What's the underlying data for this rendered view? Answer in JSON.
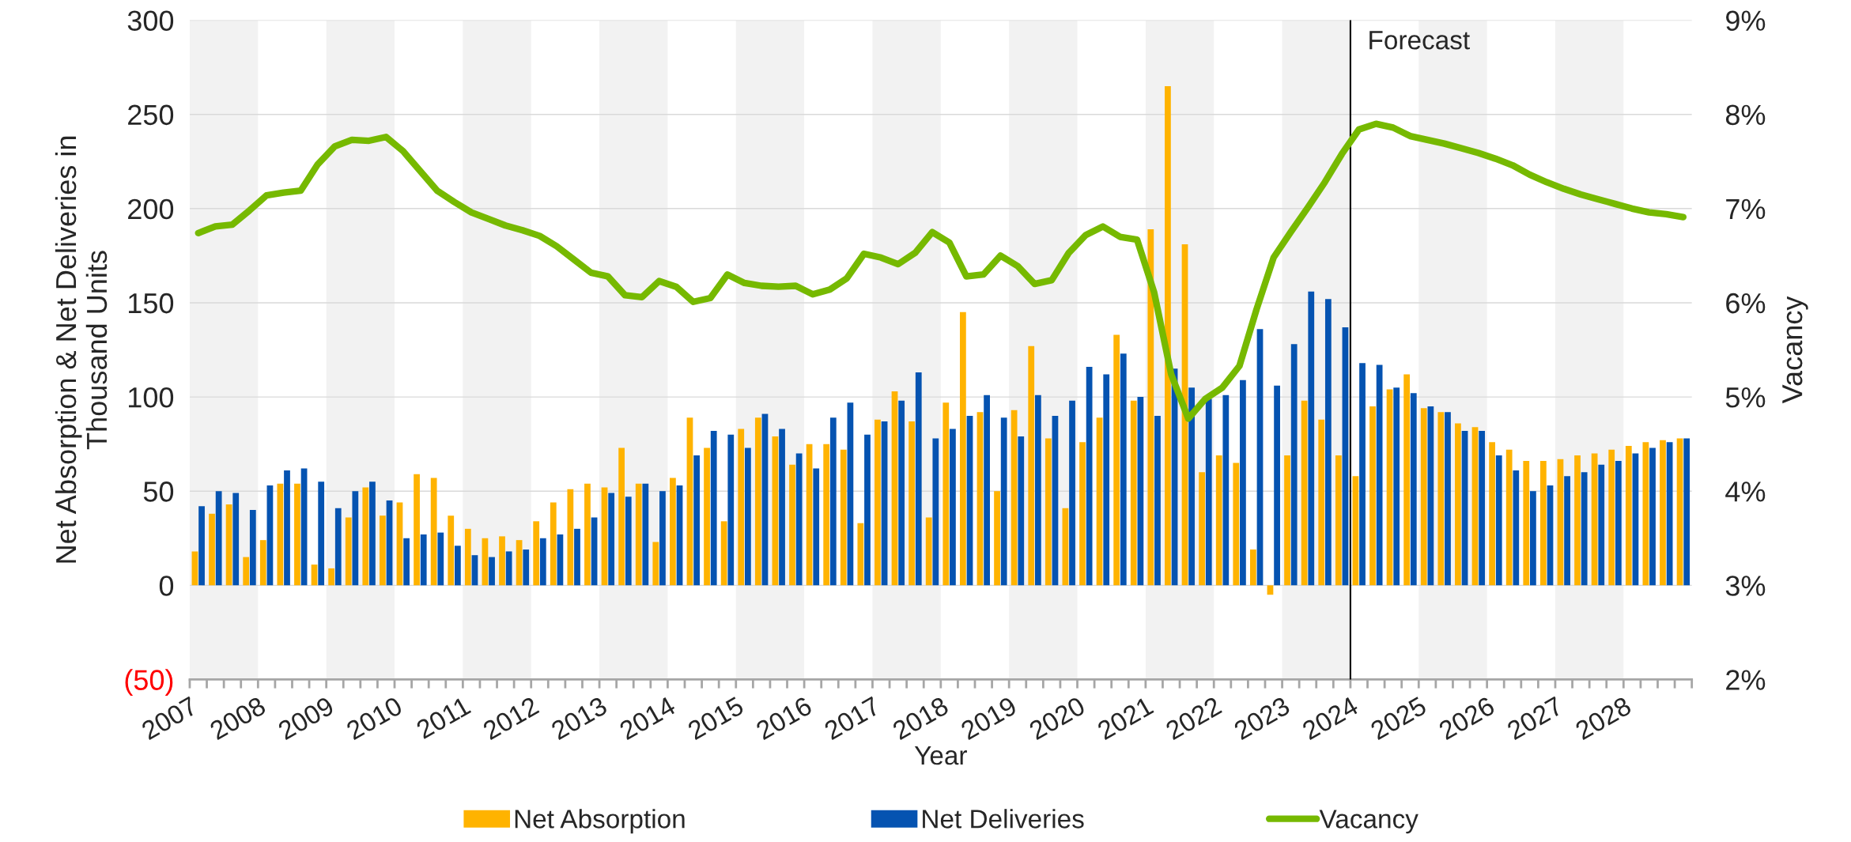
{
  "chart_data": {
    "type": "bar",
    "xlabel": "Year",
    "ylabel": "Net Absorption & Net Deliveries in\nThousand Units",
    "y2label": "Vacancy",
    "x": [
      2007.125,
      2007.375,
      2007.625,
      2007.875,
      2008.125,
      2008.375,
      2008.625,
      2008.875,
      2009.125,
      2009.375,
      2009.625,
      2009.875,
      2010.125,
      2010.375,
      2010.625,
      2010.875,
      2011.125,
      2011.375,
      2011.625,
      2011.875,
      2012.125,
      2012.375,
      2012.625,
      2012.875,
      2013.125,
      2013.375,
      2013.625,
      2013.875,
      2014.125,
      2014.375,
      2014.625,
      2014.875,
      2015.125,
      2015.375,
      2015.625,
      2015.875,
      2016.125,
      2016.375,
      2016.625,
      2016.875,
      2017.125,
      2017.375,
      2017.625,
      2017.875,
      2018.125,
      2018.375,
      2018.625,
      2018.875,
      2019.125,
      2019.375,
      2019.625,
      2019.875,
      2020.125,
      2020.375,
      2020.625,
      2020.875,
      2021.125,
      2021.375,
      2021.625,
      2021.875,
      2022.125,
      2022.375,
      2022.625,
      2022.875,
      2023.125,
      2023.375,
      2023.625,
      2023.875,
      2024.125,
      2024.375,
      2024.625,
      2024.875,
      2025.125,
      2025.375,
      2025.625,
      2025.875,
      2026.125,
      2026.375,
      2026.625,
      2026.875,
      2027.125,
      2027.375,
      2027.625,
      2027.875,
      2028.125,
      2028.375,
      2028.625,
      2028.875
    ],
    "series": [
      {
        "name": "Net Absorption",
        "color": "#ffb300",
        "values": [
          18,
          38,
          43,
          15,
          24,
          54,
          54,
          11,
          9,
          36,
          52,
          37,
          44,
          59,
          57,
          37,
          30,
          25,
          26,
          24,
          34,
          44,
          51,
          54,
          52,
          73,
          54,
          23,
          57,
          89,
          73,
          34,
          83,
          89,
          79,
          64,
          75,
          75,
          72,
          33,
          88,
          103,
          87,
          36,
          97,
          145,
          92,
          50,
          93,
          127,
          78,
          41,
          76,
          89,
          133,
          98,
          189,
          265,
          181,
          60,
          69,
          65,
          19,
          -5,
          69,
          98,
          88,
          69,
          58,
          95,
          104,
          112,
          94,
          92,
          86,
          84,
          76,
          72,
          66,
          66,
          67,
          69,
          70,
          72,
          74,
          76,
          77,
          78
        ]
      },
      {
        "name": "Net Deliveries",
        "color": "#0553b1",
        "values": [
          42,
          50,
          49,
          40,
          53,
          61,
          62,
          55,
          41,
          50,
          55,
          45,
          25,
          27,
          28,
          21,
          16,
          15,
          18,
          19,
          25,
          27,
          30,
          36,
          49,
          47,
          54,
          50,
          53,
          69,
          82,
          80,
          73,
          91,
          83,
          70,
          62,
          89,
          97,
          80,
          87,
          98,
          113,
          78,
          83,
          90,
          101,
          89,
          79,
          101,
          90,
          98,
          116,
          112,
          123,
          100,
          90,
          115,
          105,
          99,
          101,
          109,
          136,
          106,
          128,
          156,
          152,
          137,
          118,
          117,
          105,
          102,
          95,
          92,
          82,
          82,
          69,
          61,
          50,
          53,
          58,
          60,
          64,
          66,
          70,
          73,
          76,
          78
        ]
      },
      {
        "name": "Vacancy",
        "color": "#76b900",
        "type": "line",
        "axis": "y2",
        "values": [
          6.74,
          6.81,
          6.83,
          6.98,
          7.14,
          7.17,
          7.19,
          7.47,
          7.66,
          7.73,
          7.72,
          7.76,
          7.61,
          7.4,
          7.19,
          7.07,
          6.96,
          6.89,
          6.82,
          6.77,
          6.71,
          6.6,
          6.46,
          6.32,
          6.28,
          6.08,
          6.06,
          6.23,
          6.17,
          6.01,
          6.05,
          6.3,
          6.21,
          6.18,
          6.17,
          6.18,
          6.09,
          6.14,
          6.26,
          6.52,
          6.48,
          6.41,
          6.53,
          6.75,
          6.64,
          6.28,
          6.3,
          6.5,
          6.39,
          6.2,
          6.24,
          6.53,
          6.72,
          6.81,
          6.7,
          6.67,
          6.11,
          5.24,
          4.77,
          4.98,
          5.1,
          5.33,
          5.93,
          6.48,
          6.75,
          7.01,
          7.28,
          7.58,
          7.84,
          7.9,
          7.86,
          7.77,
          7.73,
          7.69,
          7.64,
          7.59,
          7.53,
          7.46,
          7.36,
          7.28,
          7.21,
          7.15,
          7.1,
          7.05,
          7.0,
          6.96,
          6.94,
          6.91
        ]
      }
    ],
    "xlim": [
      2007,
      2029
    ],
    "xticks": [
      2007,
      {
        "value": 2007.25,
        "label": null
      },
      {
        "value": 2007.5,
        "label": null
      },
      {
        "value": 2007.75,
        "label": null
      },
      2008,
      {
        "value": 2008.25,
        "label": null
      },
      {
        "value": 2008.5,
        "label": null
      },
      {
        "value": 2008.75,
        "label": null
      },
      2009,
      {
        "value": 2009.25,
        "label": null
      },
      {
        "value": 2009.5,
        "label": null
      },
      {
        "value": 2009.75,
        "label": null
      },
      2010,
      {
        "value": 2010.25,
        "label": null
      },
      {
        "value": 2010.5,
        "label": null
      },
      {
        "value": 2010.75,
        "label": null
      },
      2011,
      {
        "value": 2011.25,
        "label": null
      },
      {
        "value": 2011.5,
        "label": null
      },
      {
        "value": 2011.75,
        "label": null
      },
      2012,
      {
        "value": 2012.25,
        "label": null
      },
      {
        "value": 2012.5,
        "label": null
      },
      {
        "value": 2012.75,
        "label": null
      },
      2013,
      {
        "value": 2013.25,
        "label": null
      },
      {
        "value": 2013.5,
        "label": null
      },
      {
        "value": 2013.75,
        "label": null
      },
      2014,
      {
        "value": 2014.25,
        "label": null
      },
      {
        "value": 2014.5,
        "label": null
      },
      {
        "value": 2014.75,
        "label": null
      },
      2015,
      {
        "value": 2015.25,
        "label": null
      },
      {
        "value": 2015.5,
        "label": null
      },
      {
        "value": 2015.75,
        "label": null
      },
      2016,
      {
        "value": 2016.25,
        "label": null
      },
      {
        "value": 2016.5,
        "label": null
      },
      {
        "value": 2016.75,
        "label": null
      },
      2017,
      {
        "value": 2017.25,
        "label": null
      },
      {
        "value": 2017.5,
        "label": null
      },
      {
        "value": 2017.75,
        "label": null
      },
      2018,
      {
        "value": 2018.25,
        "label": null
      },
      {
        "value": 2018.5,
        "label": null
      },
      {
        "value": 2018.75,
        "label": null
      },
      2019,
      {
        "value": 2019.25,
        "label": null
      },
      {
        "value": 2019.5,
        "label": null
      },
      {
        "value": 2019.75,
        "label": null
      },
      2020,
      {
        "value": 2020.25,
        "label": null
      },
      {
        "value": 2020.5,
        "label": null
      },
      {
        "value": 2020.75,
        "label": null
      },
      2021,
      {
        "value": 2021.25,
        "label": null
      },
      {
        "value": 2021.5,
        "label": null
      },
      {
        "value": 2021.75,
        "label": null
      },
      2022,
      {
        "value": 2022.25,
        "label": null
      },
      {
        "value": 2022.5,
        "label": null
      },
      {
        "value": 2022.75,
        "label": null
      },
      2023,
      {
        "value": 2023.25,
        "label": null
      },
      {
        "value": 2023.5,
        "label": null
      },
      {
        "value": 2023.75,
        "label": null
      },
      2024,
      {
        "value": 2024.25,
        "label": null
      },
      {
        "value": 2024.5,
        "label": null
      },
      {
        "value": 2024.75,
        "label": null
      },
      2025,
      {
        "value": 2025.25,
        "label": null
      },
      {
        "value": 2025.5,
        "label": null
      },
      {
        "value": 2025.75,
        "label": null
      },
      2026,
      {
        "value": 2026.25,
        "label": null
      },
      {
        "value": 2026.5,
        "label": null
      },
      {
        "value": 2026.75,
        "label": null
      },
      2027,
      {
        "value": 2027.25,
        "label": null
      },
      {
        "value": 2027.5,
        "label": null
      },
      {
        "value": 2027.75,
        "label": null
      },
      2028,
      {
        "value": 2028.25,
        "label": null
      },
      {
        "value": 2028.5,
        "label": null
      },
      {
        "value": 2028.75,
        "label": null
      },
      {
        "value": 2029,
        "label": null
      }
    ],
    "ylim": [
      -50,
      300
    ],
    "yticks": [
      {
        "value": -50,
        "label": "(50)"
      },
      0,
      50,
      100,
      150,
      200,
      250,
      300
    ],
    "y2lim": [
      2,
      9
    ],
    "y2ticks": [
      {
        "value": 2,
        "label": "2%"
      },
      {
        "value": 3,
        "label": "3%"
      },
      {
        "value": 4,
        "label": "4%"
      },
      {
        "value": 5,
        "label": "5%"
      },
      {
        "value": 6,
        "label": "6%"
      },
      {
        "value": 7,
        "label": "7%"
      },
      {
        "value": 8,
        "label": "8%"
      },
      {
        "value": 9,
        "label": "9%"
      }
    ],
    "bands": [
      {
        "axis": "x",
        "from": 2007,
        "to": 2008,
        "color": "#f2f2f2"
      },
      {
        "axis": "x",
        "from": 2009,
        "to": 2010,
        "color": "#f2f2f2"
      },
      {
        "axis": "x",
        "from": 2011,
        "to": 2012,
        "color": "#f2f2f2"
      },
      {
        "axis": "x",
        "from": 2013,
        "to": 2014,
        "color": "#f2f2f2"
      },
      {
        "axis": "x",
        "from": 2015,
        "to": 2016,
        "color": "#f2f2f2"
      },
      {
        "axis": "x",
        "from": 2017,
        "to": 2018,
        "color": "#f2f2f2"
      },
      {
        "axis": "x",
        "from": 2019,
        "to": 2020,
        "color": "#f2f2f2"
      },
      {
        "axis": "x",
        "from": 2021,
        "to": 2022,
        "color": "#f2f2f2"
      },
      {
        "axis": "x",
        "from": 2023,
        "to": 2024,
        "color": "#f2f2f2"
      },
      {
        "axis": "x",
        "from": 2025,
        "to": 2026,
        "color": "#f2f2f2"
      },
      {
        "axis": "x",
        "from": 2027,
        "to": 2028,
        "color": "#f2f2f2"
      }
    ],
    "ref_lines": [
      {
        "axis": "x",
        "value": 2024,
        "label": "Forecast",
        "color": "#000000",
        "line_style": "solid"
      }
    ],
    "grid": "y",
    "legend": "bottom"
  }
}
